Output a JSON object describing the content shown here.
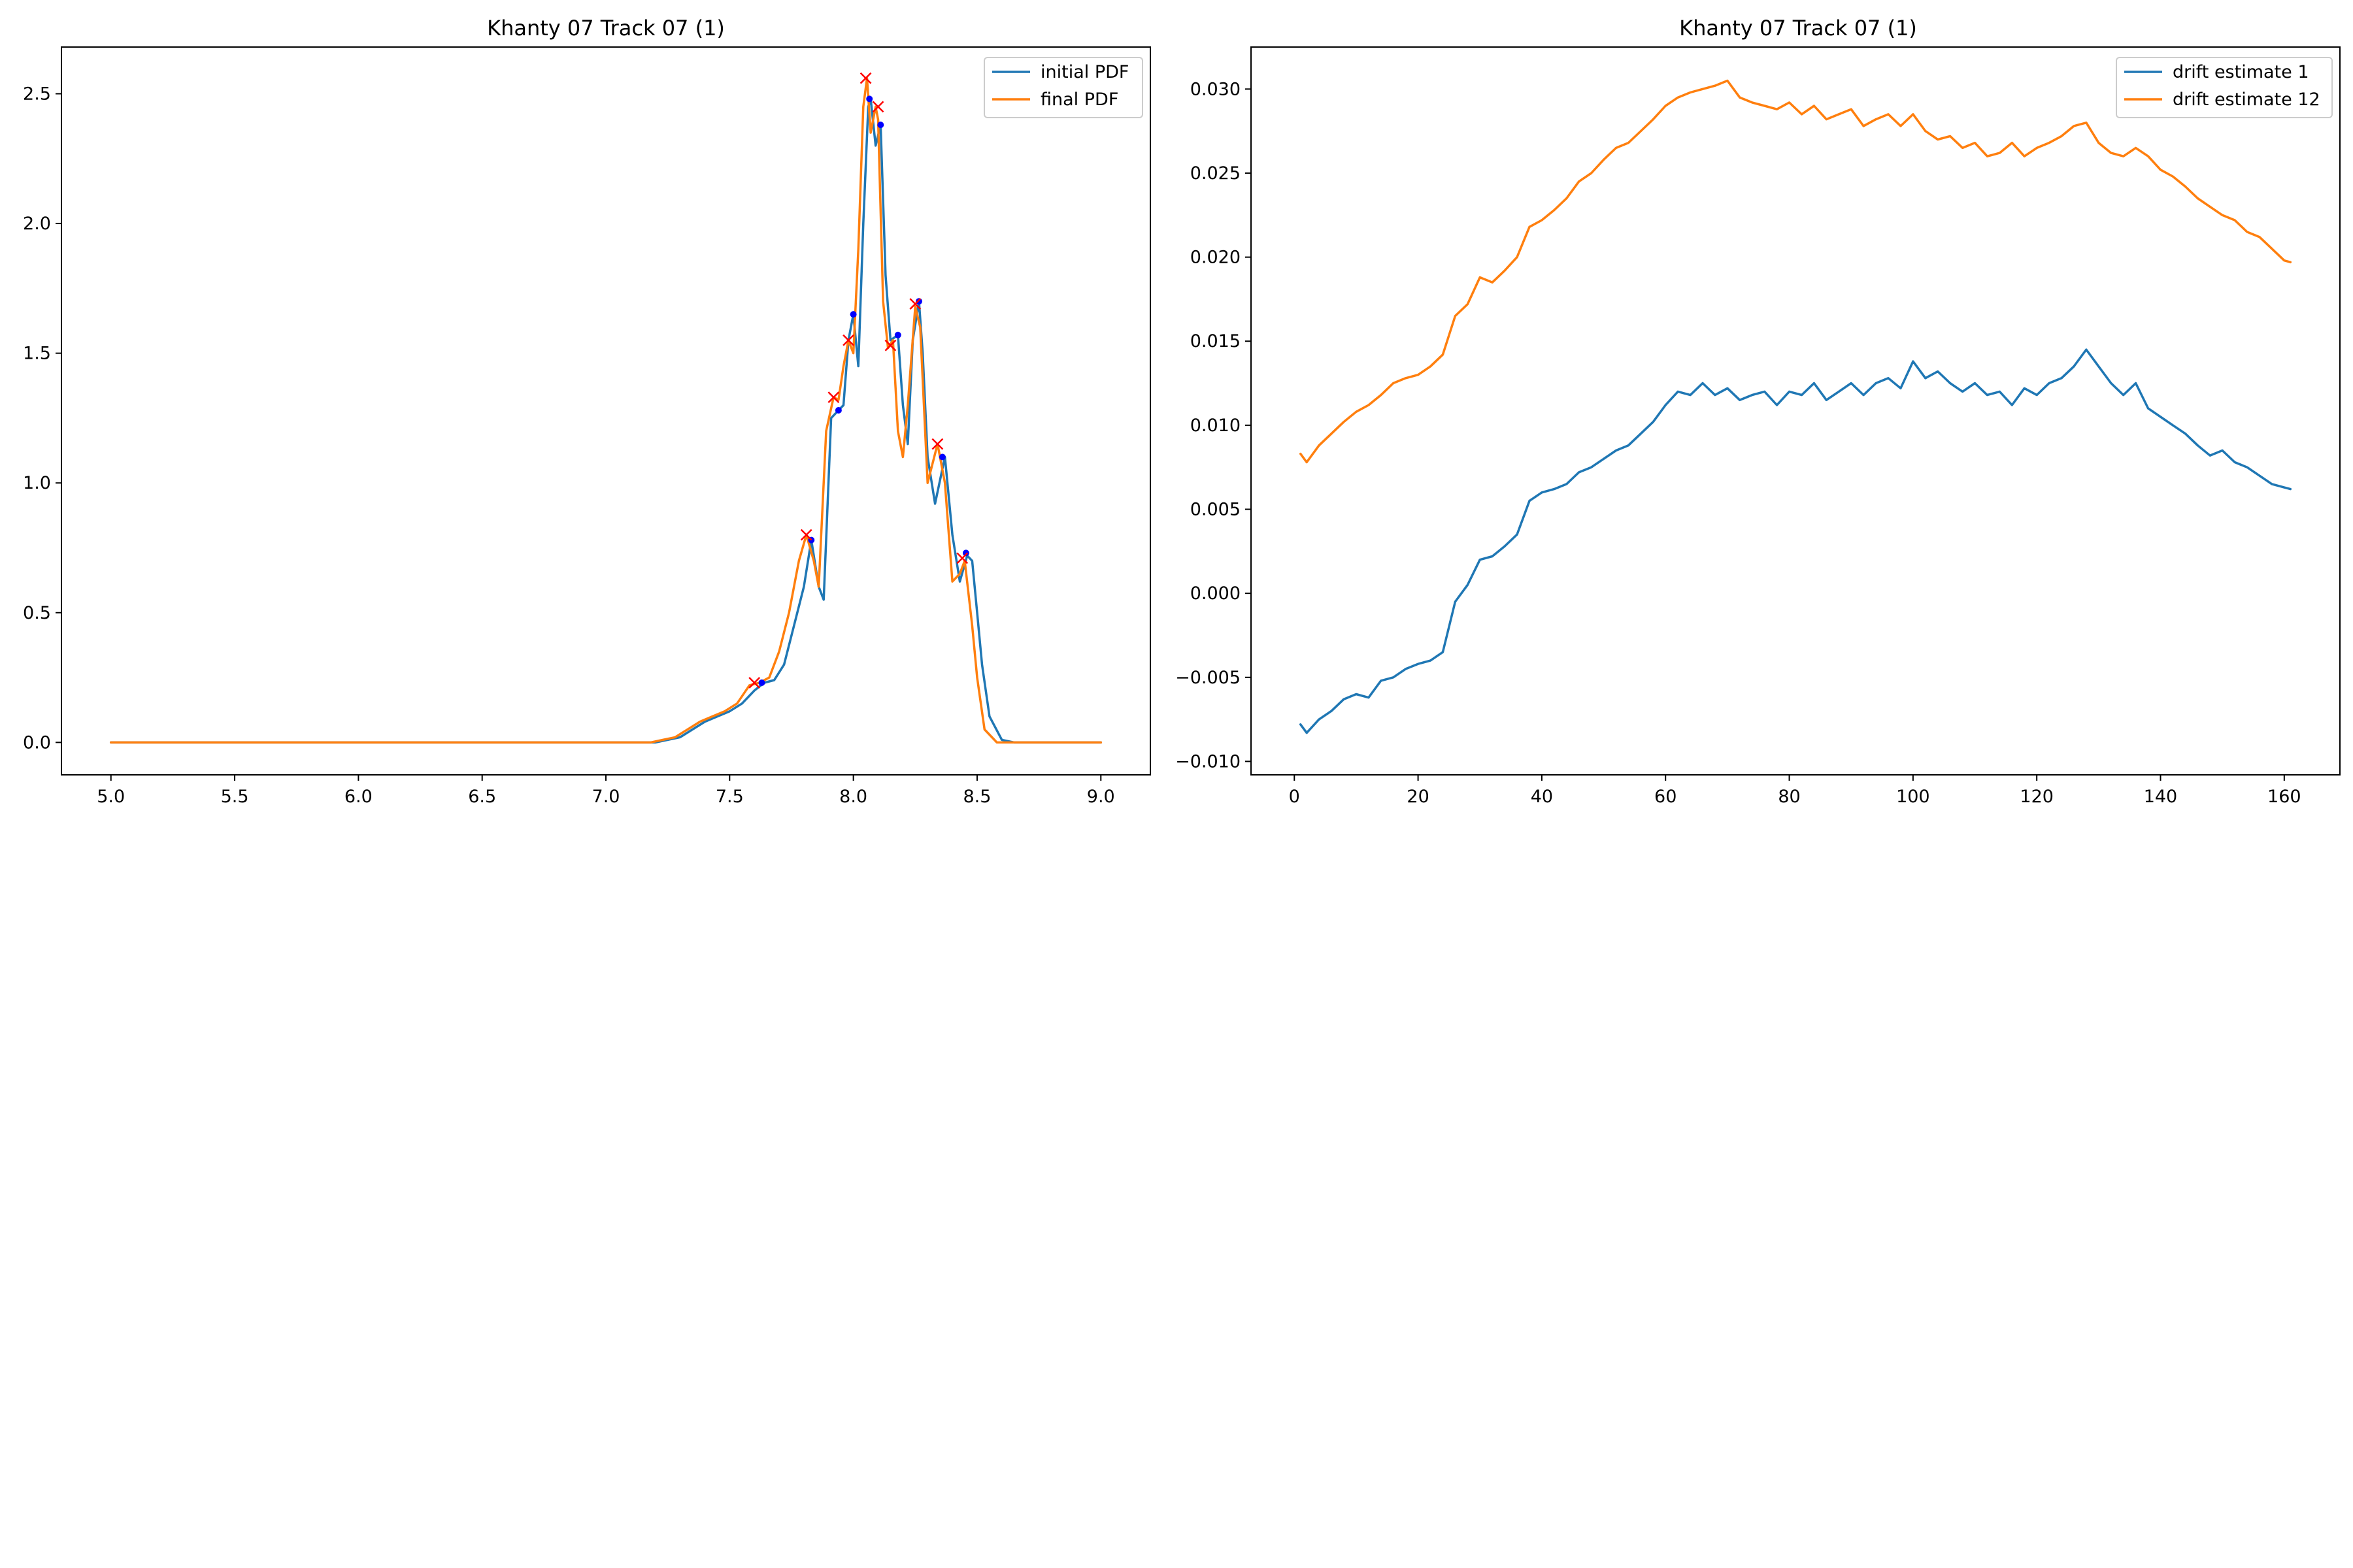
{
  "colors": {
    "blue": "#1f77b4",
    "orange": "#ff7f0e",
    "peak_marker": "#0000ff",
    "cross_marker": "#ff0000"
  },
  "chart_data": [
    {
      "type": "line",
      "title": "Khanty 07 Track 07 (1)",
      "xlabel": "",
      "ylabel": "",
      "xlim": [
        4.8,
        9.2
      ],
      "ylim": [
        -0.125,
        2.68
      ],
      "grid": false,
      "legend_position": "top-right",
      "xticks": [
        5.0,
        5.5,
        6.0,
        6.5,
        7.0,
        7.5,
        8.0,
        8.5,
        9.0
      ],
      "xtick_labels": [
        "5.0",
        "5.5",
        "6.0",
        "6.5",
        "7.0",
        "7.5",
        "8.0",
        "8.5",
        "9.0"
      ],
      "yticks": [
        0.0,
        0.5,
        1.0,
        1.5,
        2.0,
        2.5
      ],
      "ytick_labels": [
        "0.0",
        "0.5",
        "1.0",
        "1.5",
        "2.0",
        "2.5"
      ],
      "series": [
        {
          "name": "initial PDF",
          "color": "#1f77b4",
          "x": [
            5.0,
            7.0,
            7.2,
            7.3,
            7.35,
            7.4,
            7.45,
            7.5,
            7.55,
            7.6,
            7.64,
            7.68,
            7.72,
            7.76,
            7.8,
            7.83,
            7.86,
            7.88,
            7.91,
            7.94,
            7.96,
            7.98,
            8.0,
            8.02,
            8.04,
            8.06,
            8.07,
            8.09,
            8.11,
            8.13,
            8.15,
            8.18,
            8.2,
            8.22,
            8.24,
            8.265,
            8.28,
            8.3,
            8.33,
            8.37,
            8.4,
            8.43,
            8.46,
            8.48,
            8.5,
            8.52,
            8.55,
            8.6,
            8.65,
            9.0
          ],
          "y": [
            0.0,
            0.0,
            0.0,
            0.02,
            0.05,
            0.08,
            0.1,
            0.12,
            0.15,
            0.2,
            0.23,
            0.24,
            0.3,
            0.45,
            0.6,
            0.78,
            0.6,
            0.55,
            1.25,
            1.28,
            1.3,
            1.55,
            1.65,
            1.45,
            2.0,
            2.45,
            2.48,
            2.3,
            2.38,
            1.8,
            1.55,
            1.57,
            1.3,
            1.15,
            1.55,
            1.7,
            1.5,
            1.1,
            0.92,
            1.1,
            0.8,
            0.62,
            0.72,
            0.7,
            0.5,
            0.3,
            0.1,
            0.01,
            0.0,
            0.0
          ]
        },
        {
          "name": "final PDF",
          "color": "#ff7f0e",
          "x": [
            5.0,
            7.0,
            7.18,
            7.28,
            7.33,
            7.38,
            7.43,
            7.48,
            7.53,
            7.58,
            7.62,
            7.66,
            7.7,
            7.74,
            7.78,
            7.81,
            7.84,
            7.86,
            7.89,
            7.92,
            7.94,
            7.96,
            7.98,
            8.0,
            8.02,
            8.04,
            8.055,
            8.07,
            8.09,
            8.1,
            8.12,
            8.14,
            8.16,
            8.18,
            8.2,
            8.22,
            8.25,
            8.27,
            8.3,
            8.34,
            8.37,
            8.4,
            8.43,
            8.45,
            8.48,
            8.5,
            8.53,
            8.58,
            8.62,
            9.0
          ],
          "y": [
            0.0,
            0.0,
            0.0,
            0.02,
            0.05,
            0.08,
            0.1,
            0.12,
            0.15,
            0.22,
            0.23,
            0.25,
            0.35,
            0.5,
            0.7,
            0.8,
            0.7,
            0.6,
            1.2,
            1.33,
            1.32,
            1.45,
            1.55,
            1.5,
            1.9,
            2.45,
            2.56,
            2.35,
            2.45,
            2.4,
            1.7,
            1.52,
            1.55,
            1.2,
            1.1,
            1.3,
            1.68,
            1.6,
            1.0,
            1.15,
            1.0,
            0.62,
            0.65,
            0.7,
            0.45,
            0.25,
            0.05,
            0.0,
            0.0,
            0.0
          ]
        }
      ],
      "markers": {
        "initial_peaks": {
          "color": "#0000ff",
          "x": [
            7.63,
            7.83,
            7.94,
            8.0,
            8.065,
            8.11,
            8.18,
            8.265,
            8.36,
            8.455
          ],
          "y": [
            0.23,
            0.78,
            1.28,
            1.65,
            2.48,
            2.38,
            1.57,
            1.7,
            1.1,
            0.73
          ]
        },
        "final_peaks": {
          "color": "#ff0000",
          "x": [
            7.6,
            7.81,
            7.92,
            7.98,
            8.05,
            8.1,
            8.15,
            8.25,
            8.34,
            8.44
          ],
          "y": [
            0.23,
            0.8,
            1.33,
            1.55,
            2.56,
            2.45,
            1.53,
            1.69,
            1.15,
            0.71
          ]
        }
      }
    },
    {
      "type": "line",
      "title": "Khanty 07 Track 07 (1)",
      "xlabel": "",
      "ylabel": "",
      "xlim": [
        -7,
        169
      ],
      "ylim": [
        -0.0108,
        0.0325
      ],
      "grid": false,
      "legend_position": "top-right",
      "xticks": [
        0,
        20,
        40,
        60,
        80,
        100,
        120,
        140,
        160
      ],
      "xtick_labels": [
        "0",
        "20",
        "40",
        "60",
        "80",
        "100",
        "120",
        "140",
        "160"
      ],
      "yticks": [
        -0.01,
        -0.005,
        0.0,
        0.005,
        0.01,
        0.015,
        0.02,
        0.025,
        0.03
      ],
      "ytick_labels": [
        "−0.010",
        "−0.005",
        "0.000",
        "0.005",
        "0.010",
        "0.015",
        "0.020",
        "0.025",
        "0.030"
      ],
      "series": [
        {
          "name": "drift estimate 1",
          "color": "#1f77b4",
          "x": [
            1,
            2,
            4,
            6,
            8,
            10,
            12,
            14,
            16,
            18,
            20,
            22,
            24,
            26,
            28,
            30,
            32,
            34,
            36,
            38,
            40,
            42,
            44,
            46,
            48,
            50,
            52,
            54,
            56,
            58,
            60,
            62,
            64,
            66,
            68,
            70,
            72,
            74,
            76,
            78,
            80,
            82,
            84,
            86,
            88,
            90,
            92,
            94,
            96,
            98,
            100,
            102,
            104,
            106,
            108,
            110,
            112,
            114,
            116,
            118,
            120,
            122,
            124,
            126,
            128,
            130,
            132,
            134,
            136,
            138,
            140,
            142,
            144,
            146,
            148,
            150,
            152,
            154,
            156,
            158,
            160,
            161
          ],
          "y": [
            -0.0078,
            -0.0083,
            -0.0075,
            -0.007,
            -0.0063,
            -0.006,
            -0.0062,
            -0.0052,
            -0.005,
            -0.0045,
            -0.0042,
            -0.004,
            -0.0035,
            -0.0005,
            0.0005,
            0.002,
            0.0022,
            0.0028,
            0.0035,
            0.0055,
            0.006,
            0.0062,
            0.0065,
            0.0072,
            0.0075,
            0.008,
            0.0085,
            0.0088,
            0.0095,
            0.0102,
            0.0112,
            0.012,
            0.0118,
            0.0125,
            0.0118,
            0.0122,
            0.0115,
            0.0118,
            0.012,
            0.0112,
            0.012,
            0.0118,
            0.0125,
            0.0115,
            0.012,
            0.0125,
            0.0118,
            0.0125,
            0.0128,
            0.0122,
            0.0138,
            0.0128,
            0.0132,
            0.0125,
            0.012,
            0.0125,
            0.0118,
            0.012,
            0.0112,
            0.0122,
            0.0118,
            0.0125,
            0.0128,
            0.0135,
            0.0145,
            0.0135,
            0.0125,
            0.0118,
            0.0125,
            0.011,
            0.0105,
            0.01,
            0.0095,
            0.0088,
            0.0082,
            0.0085,
            0.0078,
            0.0075,
            0.007,
            0.0065,
            0.0063,
            0.0062
          ]
        },
        {
          "name": "drift estimate 12",
          "color": "#ff7f0e",
          "x": [
            1,
            2,
            4,
            6,
            8,
            10,
            12,
            14,
            16,
            18,
            20,
            22,
            24,
            26,
            28,
            30,
            32,
            34,
            36,
            38,
            40,
            42,
            44,
            46,
            48,
            50,
            52,
            54,
            56,
            58,
            60,
            62,
            64,
            66,
            68,
            70,
            72,
            74,
            76,
            78,
            80,
            82,
            84,
            86,
            88,
            90,
            92,
            94,
            96,
            98,
            100,
            102,
            104,
            106,
            108,
            110,
            112,
            114,
            116,
            118,
            120,
            122,
            124,
            126,
            128,
            130,
            132,
            134,
            136,
            138,
            140,
            142,
            144,
            146,
            148,
            150,
            152,
            154,
            156,
            158,
            160,
            161
          ],
          "y": [
            0.0083,
            0.0078,
            0.0088,
            0.0095,
            0.0102,
            0.0108,
            0.0112,
            0.0118,
            0.0125,
            0.0128,
            0.013,
            0.0135,
            0.0142,
            0.0165,
            0.0172,
            0.0188,
            0.0185,
            0.0192,
            0.02,
            0.0218,
            0.0222,
            0.0228,
            0.0235,
            0.0245,
            0.025,
            0.0258,
            0.0265,
            0.0268,
            0.0275,
            0.0282,
            0.029,
            0.0295,
            0.0298,
            0.03,
            0.0302,
            0.0305,
            0.0295,
            0.0292,
            0.029,
            0.0288,
            0.0292,
            0.0285,
            0.029,
            0.0282,
            0.0285,
            0.0288,
            0.0278,
            0.0282,
            0.0285,
            0.0278,
            0.0285,
            0.0275,
            0.027,
            0.0272,
            0.0265,
            0.0268,
            0.026,
            0.0262,
            0.0268,
            0.026,
            0.0265,
            0.0268,
            0.0272,
            0.0278,
            0.028,
            0.0268,
            0.0262,
            0.026,
            0.0265,
            0.026,
            0.0252,
            0.0248,
            0.0242,
            0.0235,
            0.023,
            0.0225,
            0.0222,
            0.0215,
            0.0212,
            0.0205,
            0.0198,
            0.0197
          ]
        }
      ]
    }
  ]
}
